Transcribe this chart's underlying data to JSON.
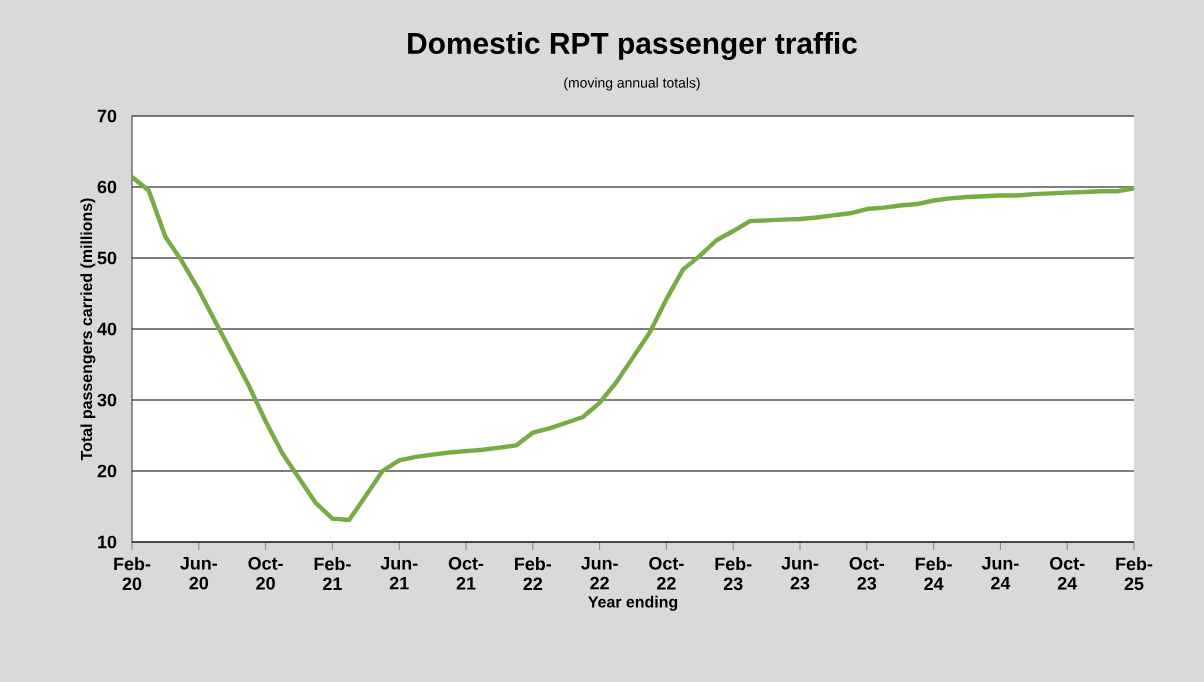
{
  "chart_data": {
    "type": "line",
    "title": "Domestic RPT passenger traffic",
    "subtitle": "(moving annual totals)",
    "xlabel": "Year ending",
    "ylabel": "Total passengers carried (millions)",
    "categories": [
      "Feb-20",
      null,
      null,
      null,
      "Jun-20",
      null,
      null,
      null,
      "Oct-20",
      null,
      null,
      null,
      "Feb-21",
      null,
      null,
      null,
      "Jun-21",
      null,
      null,
      null,
      "Oct-21",
      null,
      null,
      null,
      "Feb-22",
      null,
      null,
      null,
      "Jun-22",
      null,
      null,
      null,
      "Oct-22",
      null,
      null,
      null,
      "Feb-23",
      null,
      null,
      null,
      "Jun-23",
      null,
      null,
      null,
      "Oct-23",
      null,
      null,
      null,
      "Feb-24",
      null,
      null,
      null,
      "Jun-24",
      null,
      null,
      null,
      "Oct-24",
      null,
      null,
      null,
      "Feb-25"
    ],
    "series": [
      {
        "color": "#77ac45",
        "values": [
          61.4,
          59.5,
          53,
          49.5,
          45.5,
          41,
          36.5,
          32,
          27,
          22.5,
          19,
          15.5,
          13.3,
          13.1,
          16.5,
          20,
          21.5,
          22,
          22.3,
          22.6,
          22.8,
          23,
          23.3,
          23.6,
          25.4,
          26,
          26.8,
          27.6,
          29.6,
          32.5,
          36,
          39.5,
          44.2,
          48.4,
          50.3,
          52.5,
          53.8,
          55.2,
          55.3,
          55.4,
          55.5,
          55.7,
          56,
          56.3,
          56.9,
          57.1,
          57.4,
          57.6,
          58.1,
          58.4,
          58.6,
          58.7,
          58.8,
          58.8,
          59,
          59.1,
          59.2,
          59.3,
          59.4,
          59.4,
          59.8
        ]
      }
    ],
    "ylim": [
      10,
      70
    ],
    "yticks": [
      10,
      20,
      30,
      40,
      50,
      60,
      70
    ],
    "grid": "y",
    "marker": "none",
    "line_style": "solid"
  }
}
